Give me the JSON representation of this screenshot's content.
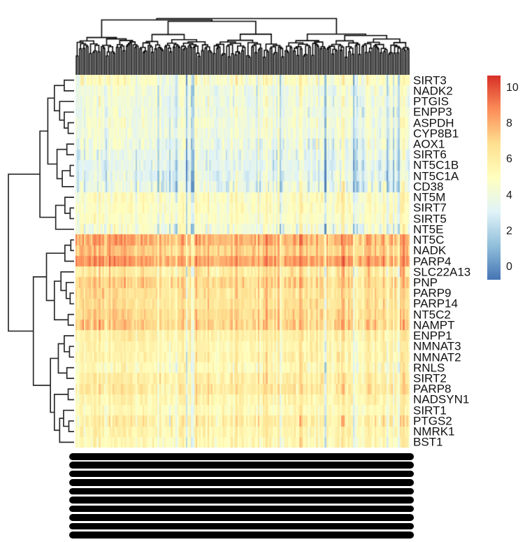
{
  "chart_data": {
    "type": "heatmap",
    "title": "",
    "description": "Hierarchically clustered gene-expression heatmap (pheatmap style) of NAD-metabolism genes across ~200 samples, with row and column dendrograms, RdYlBu color scale, and overplotted (illegible) column labels at bottom",
    "rows": [
      {
        "label": "SIRT3",
        "mean": 4.6,
        "sd": 1.1
      },
      {
        "label": "NADK2",
        "mean": 4.1,
        "sd": 0.9
      },
      {
        "label": "PTGIS",
        "mean": 4.1,
        "sd": 0.9
      },
      {
        "label": "ENPP3",
        "mean": 4.0,
        "sd": 0.9
      },
      {
        "label": "ASPDH",
        "mean": 4.2,
        "sd": 0.9
      },
      {
        "label": "CYP8B1",
        "mean": 4.1,
        "sd": 0.8
      },
      {
        "label": "AOX1",
        "mean": 3.9,
        "sd": 1.1
      },
      {
        "label": "SIRT6",
        "mean": 3.6,
        "sd": 1.0
      },
      {
        "label": "NT5C1B",
        "mean": 3.4,
        "sd": 1.0
      },
      {
        "label": "NT5C1A",
        "mean": 3.4,
        "sd": 1.0
      },
      {
        "label": "CD38",
        "mean": 3.7,
        "sd": 1.3
      },
      {
        "label": "NT5M",
        "mean": 4.9,
        "sd": 0.9
      },
      {
        "label": "SIRT7",
        "mean": 5.0,
        "sd": 0.8
      },
      {
        "label": "SIRT5",
        "mean": 4.8,
        "sd": 0.8
      },
      {
        "label": "NT5E",
        "mean": 4.3,
        "sd": 1.2
      },
      {
        "label": "NT5C",
        "mean": 7.9,
        "sd": 0.9
      },
      {
        "label": "NADK",
        "mean": 7.3,
        "sd": 0.8
      },
      {
        "label": "PARP4",
        "mean": 8.3,
        "sd": 0.8
      },
      {
        "label": "SLC22A13",
        "mean": 6.2,
        "sd": 1.1
      },
      {
        "label": "PNP",
        "mean": 7.0,
        "sd": 0.9
      },
      {
        "label": "PARP9",
        "mean": 6.6,
        "sd": 0.9
      },
      {
        "label": "PARP14",
        "mean": 6.6,
        "sd": 0.8
      },
      {
        "label": "NT5C2",
        "mean": 6.9,
        "sd": 0.8
      },
      {
        "label": "NAMPT",
        "mean": 7.1,
        "sd": 1.0
      },
      {
        "label": "ENPP1",
        "mean": 5.9,
        "sd": 0.8
      },
      {
        "label": "NMNAT3",
        "mean": 5.6,
        "sd": 0.8
      },
      {
        "label": "NMNAT2",
        "mean": 5.7,
        "sd": 0.9
      },
      {
        "label": "RNLS",
        "mean": 5.3,
        "sd": 1.0
      },
      {
        "label": "SIRT2",
        "mean": 6.0,
        "sd": 0.9
      },
      {
        "label": "PARP8",
        "mean": 6.3,
        "sd": 0.9
      },
      {
        "label": "NADSYN1",
        "mean": 5.7,
        "sd": 0.8
      },
      {
        "label": "SIRT1",
        "mean": 5.3,
        "sd": 0.8
      },
      {
        "label": "PTGS2",
        "mean": 5.9,
        "sd": 1.1
      },
      {
        "label": "NMRK1",
        "mean": 5.6,
        "sd": 0.8
      },
      {
        "label": "BST1",
        "mean": 5.3,
        "sd": 0.9
      }
    ],
    "n_columns": 200,
    "column_labels_readable": false,
    "column_label_bars": {
      "count": 10
    },
    "colorbar": {
      "position": "right",
      "ticks": [
        10,
        8,
        6,
        4,
        2,
        0
      ],
      "domain_min": -0.7,
      "domain_max": 10.7,
      "palette_low_to_high": [
        "#4575B4",
        "#91BFDB",
        "#E0F3F8",
        "#FFFFBF",
        "#FEE090",
        "#FC8D59",
        "#D73027"
      ]
    },
    "row_dendrogram": {
      "h": 1.0,
      "c": [
        {
          "h": 0.52,
          "c": [
            {
              "h": 0.4,
              "c": [
                {
                  "h": 0.3,
                  "c": [
                    {
                      "h": 0.15,
                      "c": [
                        0,
                        1
                      ]
                    },
                    {
                      "h": 0.22,
                      "c": [
                        2,
                        {
                          "h": 0.15,
                          "c": [
                            3,
                            {
                              "h": 0.09,
                              "c": [
                                4,
                                5
                              ]
                            }
                          ]
                        }
                      ]
                    }
                  ]
                },
                {
                  "h": 0.26,
                  "c": [
                    {
                      "h": 0.11,
                      "c": [
                        6,
                        7
                      ]
                    },
                    {
                      "h": 0.18,
                      "c": [
                        {
                          "h": 0.06,
                          "c": [
                            8,
                            9
                          ]
                        },
                        10
                      ]
                    }
                  ]
                }
              ]
            },
            {
              "h": 0.28,
              "c": [
                {
                  "h": 0.14,
                  "c": [
                    11,
                    {
                      "h": 0.06,
                      "c": [
                        12,
                        13
                      ]
                    }
                  ]
                },
                14
              ]
            }
          ]
        },
        {
          "h": 0.62,
          "c": [
            {
              "h": 0.42,
              "c": [
                {
                  "h": 0.14,
                  "c": [
                    {
                      "h": 0.05,
                      "c": [
                        15,
                        16
                      ]
                    },
                    17
                  ]
                },
                {
                  "h": 0.3,
                  "c": [
                    {
                      "h": 0.2,
                      "c": [
                        18,
                        {
                          "h": 0.12,
                          "c": [
                            19,
                            {
                              "h": 0.06,
                              "c": [
                                20,
                                21
                              ]
                            }
                          ]
                        }
                      ]
                    },
                    {
                      "h": 0.09,
                      "c": [
                        22,
                        23
                      ]
                    }
                  ]
                }
              ]
            },
            {
              "h": 0.36,
              "c": [
                {
                  "h": 0.24,
                  "c": [
                    {
                      "h": 0.15,
                      "c": [
                        24,
                        {
                          "h": 0.07,
                          "c": [
                            25,
                            26
                          ]
                        }
                      ]
                    },
                    {
                      "h": 0.11,
                      "c": [
                        27,
                        28
                      ]
                    }
                  ]
                },
                {
                  "h": 0.3,
                  "c": [
                    {
                      "h": 0.09,
                      "c": [
                        29,
                        30
                      ]
                    },
                    {
                      "h": 0.22,
                      "c": [
                        {
                          "h": 0.16,
                          "c": [
                            31,
                            {
                              "h": 0.08,
                              "c": [
                                32,
                                33
                              ]
                            }
                          ]
                        },
                        34
                      ]
                    }
                  ]
                }
              ]
            }
          ]
        }
      ]
    }
  }
}
